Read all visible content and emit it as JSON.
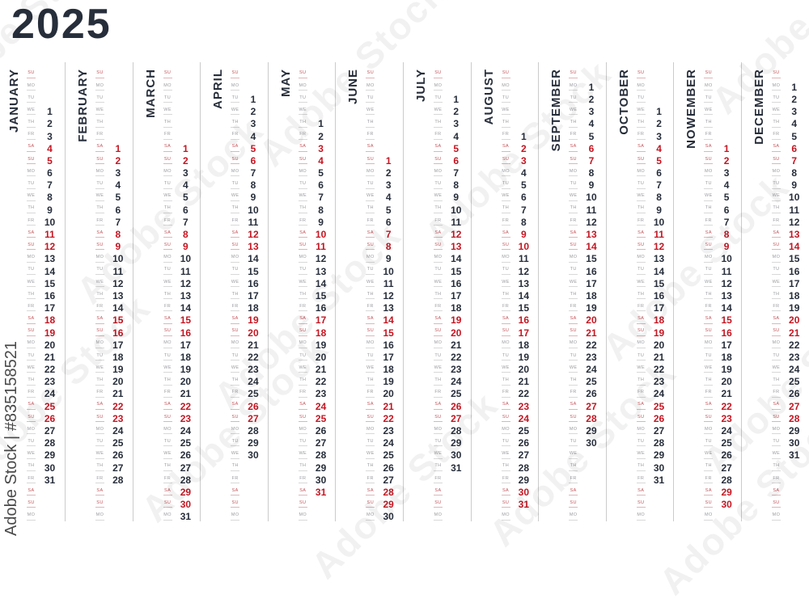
{
  "year": "2025",
  "watermark": {
    "attribution": "Adobe Stock | #835158521",
    "ghost": "Adobe Stock"
  },
  "grid": {
    "weekdays": [
      "SU",
      "MO",
      "TU",
      "WE",
      "TH",
      "FR",
      "SA"
    ],
    "weekend_indices": [
      0,
      6
    ],
    "total_rows": 37
  },
  "months": [
    {
      "name": "JANUARY",
      "first_row": 3,
      "days": 31
    },
    {
      "name": "FEBRUARY",
      "first_row": 6,
      "days": 28
    },
    {
      "name": "MARCH",
      "first_row": 6,
      "days": 31
    },
    {
      "name": "APRIL",
      "first_row": 2,
      "days": 30
    },
    {
      "name": "MAY",
      "first_row": 4,
      "days": 31
    },
    {
      "name": "JUNE",
      "first_row": 7,
      "days": 30
    },
    {
      "name": "JULY",
      "first_row": 2,
      "days": 31
    },
    {
      "name": "AUGUST",
      "first_row": 5,
      "days": 31
    },
    {
      "name": "SEPTEMBER",
      "first_row": 1,
      "days": 30
    },
    {
      "name": "OCTOBER",
      "first_row": 3,
      "days": 31
    },
    {
      "name": "NOWEMBER",
      "first_row": 6,
      "days": 30
    },
    {
      "name": "DECEMBER",
      "first_row": 1,
      "days": 31
    }
  ],
  "colors": {
    "ink": "#272e3b",
    "weekend_red": "#c41622",
    "label_gray": "#9b9ca1",
    "label_red": "#c4565c",
    "divider": "#cbcbcb",
    "underline": "#d8d8d8",
    "underline_red": "#e0b4b8",
    "attribution_gray": "#4a4a4a"
  }
}
